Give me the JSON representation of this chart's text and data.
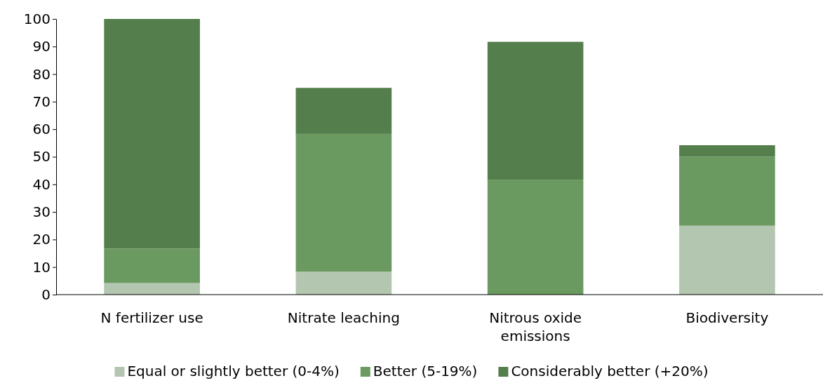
{
  "chart_data": {
    "type": "bar",
    "stacked": true,
    "categories": [
      "N fertilizer use",
      "Nitrate leaching",
      "Nitrous oxide emissions",
      "Biodiversity"
    ],
    "series": [
      {
        "name": "Equal or slightly better (0-4%)",
        "color": "#b3c6b0",
        "values": [
          4.2,
          8.3,
          0,
          25
        ]
      },
      {
        "name": "Better (5-19%)",
        "color": "#6a9a5f",
        "values": [
          12.5,
          50,
          41.7,
          25
        ]
      },
      {
        "name": "Considerably better (+20%)",
        "color": "#547e4c",
        "values": [
          83.3,
          16.7,
          50,
          4.2
        ]
      }
    ],
    "ylim": [
      0,
      100
    ],
    "yticks": [
      0,
      10,
      20,
      30,
      40,
      50,
      60,
      70,
      80,
      90,
      100
    ],
    "grid": false,
    "legend": "bottom"
  }
}
